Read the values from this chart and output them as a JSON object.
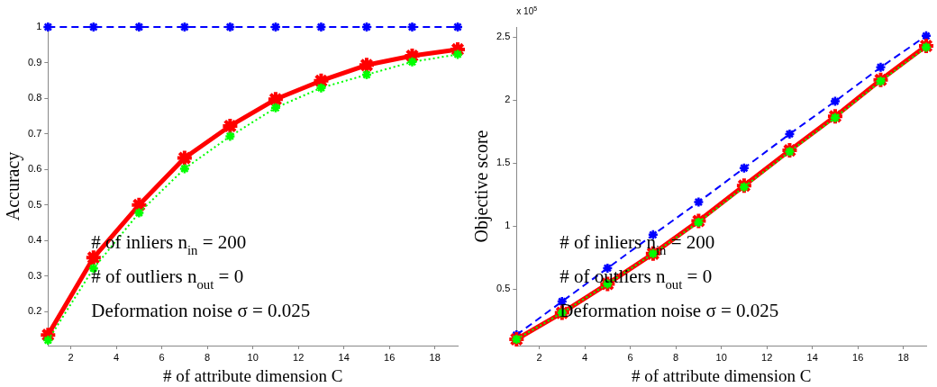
{
  "chart_data": [
    {
      "type": "line",
      "xlabel": "# of attribute dimension C",
      "ylabel": "Accuracy",
      "x": [
        1,
        3,
        5,
        7,
        9,
        11,
        13,
        15,
        17,
        19
      ],
      "xlim": [
        1,
        19
      ],
      "xticks": [
        2,
        4,
        6,
        8,
        10,
        12,
        14,
        16,
        18
      ],
      "ylim": [
        0.105,
        1
      ],
      "yticks": [
        0.2,
        0.3,
        0.4,
        0.5,
        0.6,
        0.7,
        0.8,
        0.9,
        1
      ],
      "grid": false,
      "legend": false,
      "marker": "cross",
      "series": [
        {
          "color": "#0000ff",
          "line_style": "dashed",
          "values": [
            1,
            1,
            1,
            1,
            1,
            1,
            1,
            1,
            1,
            1
          ]
        },
        {
          "color": "#ff0000",
          "line_style": "solid",
          "values": [
            0.135,
            0.352,
            0.5,
            0.632,
            0.722,
            0.797,
            0.849,
            0.893,
            0.919,
            0.937
          ]
        },
        {
          "color": "#00ff00",
          "line_style": "dotted",
          "values": [
            0.12,
            0.322,
            0.478,
            0.602,
            0.693,
            0.773,
            0.829,
            0.866,
            0.902,
            0.923
          ]
        }
      ],
      "annotations": [
        "# of inliers n$_{in}$ = 200",
        "# of outliers n$_{out}$ = 0",
        "Deformation noise σ = 0.025"
      ]
    },
    {
      "type": "line",
      "xlabel": "# of attribute dimension C",
      "ylabel": "Objective score",
      "x": [
        1,
        3,
        5,
        7,
        9,
        11,
        13,
        15,
        17,
        19
      ],
      "xlim": [
        1,
        19
      ],
      "xticks": [
        2,
        4,
        6,
        8,
        10,
        12,
        14,
        16,
        18
      ],
      "ylim": [
        0.05,
        2.58
      ],
      "yticks": [
        0.5,
        1,
        1.5,
        2,
        2.5
      ],
      "grid": false,
      "legend": false,
      "marker": "cross",
      "series": [
        {
          "color": "#0000ff",
          "line_style": "dashed",
          "values": [
            0.135,
            0.4,
            0.665,
            0.93,
            1.19,
            1.46,
            1.73,
            1.99,
            2.26,
            2.51
          ]
        },
        {
          "color": "#ff0000",
          "line_style": "solid",
          "values": [
            0.1,
            0.31,
            0.54,
            0.78,
            1.04,
            1.32,
            1.6,
            1.87,
            2.16,
            2.43
          ]
        },
        {
          "color": "#00ff00",
          "line_style": "dotted",
          "values": [
            0.1,
            0.31,
            0.54,
            0.78,
            1.03,
            1.31,
            1.59,
            1.86,
            2.15,
            2.42
          ]
        }
      ],
      "annotations": [
        "x 10$^{5}$",
        "# of inliers n$_{in}$ = 200",
        "# of outliers n$_{out}$ = 0",
        "Deformation noise σ = 0.025"
      ]
    }
  ]
}
